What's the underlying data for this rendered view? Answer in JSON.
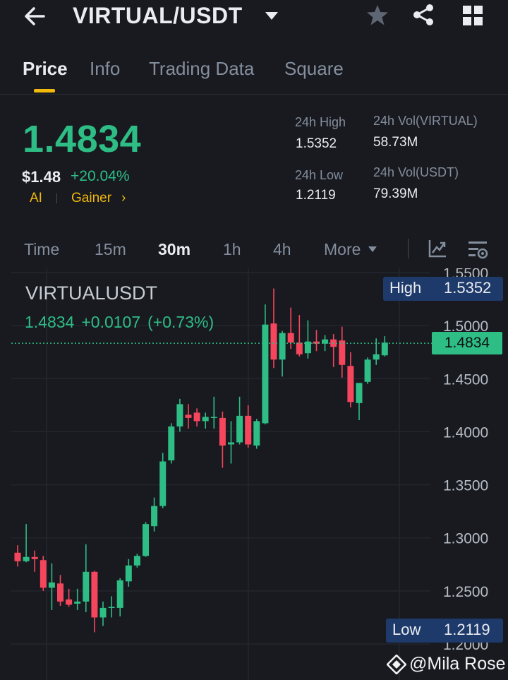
{
  "header": {
    "pair": "VIRTUAL/USDT",
    "icons": [
      "back-arrow-icon",
      "dropdown-caret-icon",
      "star-icon",
      "share-icon",
      "grid-menu-icon"
    ]
  },
  "tabs": [
    {
      "label": "Price",
      "active": true
    },
    {
      "label": "Info"
    },
    {
      "label": "Trading Data"
    },
    {
      "label": "Square"
    }
  ],
  "price": {
    "last": "1.4834",
    "usd": "$1.48",
    "change_pct": "+20.04%",
    "tag_ai": "AI",
    "tag_gainer": "Gainer",
    "tag_arrow": "›"
  },
  "stats": {
    "high_label": "24h High",
    "high_value": "1.5352",
    "low_label": "24h Low",
    "low_value": "1.2119",
    "vol_base_label": "24h Vol(VIRTUAL)",
    "vol_base_value": "58.73M",
    "vol_quote_label": "24h Vol(USDT)",
    "vol_quote_value": "79.39M"
  },
  "intervals": {
    "items": [
      "Time",
      "15m",
      "30m",
      "1h",
      "4h",
      "More"
    ],
    "active": "30m"
  },
  "chart": {
    "symbol": "VIRTUALUSDT",
    "last": "1.4834",
    "change": "+0.0107",
    "change_pct": "(+0.73%)",
    "high_label": "High",
    "high_value": "1.5352",
    "low_label": "Low",
    "low_value": "1.2119",
    "last_tag": "1.4834",
    "colors": {
      "up": "#2ebd85",
      "down": "#f6465d",
      "label_box": "#1d3a6b",
      "background": "#181a20"
    }
  },
  "chart_data": {
    "type": "candlestick",
    "y_ticks": [
      "1.5500",
      "1.5000",
      "1.4500",
      "1.4000",
      "1.3500",
      "1.3000",
      "1.2500",
      "1.2000"
    ],
    "ylim": [
      1.2,
      1.55
    ],
    "current_price": 1.4834,
    "interval": "30m",
    "candles": [
      {
        "o": 1.286,
        "h": 1.293,
        "l": 1.273,
        "c": 1.278
      },
      {
        "o": 1.278,
        "h": 1.313,
        "l": 1.277,
        "c": 1.282
      },
      {
        "o": 1.282,
        "h": 1.288,
        "l": 1.268,
        "c": 1.28
      },
      {
        "o": 1.279,
        "h": 1.283,
        "l": 1.25,
        "c": 1.253
      },
      {
        "o": 1.253,
        "h": 1.276,
        "l": 1.232,
        "c": 1.258
      },
      {
        "o": 1.257,
        "h": 1.265,
        "l": 1.236,
        "c": 1.24
      },
      {
        "o": 1.242,
        "h": 1.252,
        "l": 1.235,
        "c": 1.237
      },
      {
        "o": 1.238,
        "h": 1.252,
        "l": 1.232,
        "c": 1.24
      },
      {
        "o": 1.24,
        "h": 1.294,
        "l": 1.23,
        "c": 1.268
      },
      {
        "o": 1.268,
        "h": 1.269,
        "l": 1.211,
        "c": 1.225
      },
      {
        "o": 1.225,
        "h": 1.24,
        "l": 1.217,
        "c": 1.234
      },
      {
        "o": 1.234,
        "h": 1.245,
        "l": 1.225,
        "c": 1.235
      },
      {
        "o": 1.234,
        "h": 1.262,
        "l": 1.226,
        "c": 1.26
      },
      {
        "o": 1.259,
        "h": 1.28,
        "l": 1.254,
        "c": 1.274
      },
      {
        "o": 1.274,
        "h": 1.285,
        "l": 1.272,
        "c": 1.283
      },
      {
        "o": 1.283,
        "h": 1.315,
        "l": 1.282,
        "c": 1.313
      },
      {
        "o": 1.311,
        "h": 1.338,
        "l": 1.306,
        "c": 1.33
      },
      {
        "o": 1.33,
        "h": 1.38,
        "l": 1.328,
        "c": 1.372
      },
      {
        "o": 1.373,
        "h": 1.408,
        "l": 1.37,
        "c": 1.405
      },
      {
        "o": 1.405,
        "h": 1.431,
        "l": 1.4,
        "c": 1.426
      },
      {
        "o": 1.416,
        "h": 1.426,
        "l": 1.403,
        "c": 1.413
      },
      {
        "o": 1.418,
        "h": 1.422,
        "l": 1.405,
        "c": 1.41
      },
      {
        "o": 1.41,
        "h": 1.418,
        "l": 1.403,
        "c": 1.414
      },
      {
        "o": 1.414,
        "h": 1.433,
        "l": 1.403,
        "c": 1.414
      },
      {
        "o": 1.413,
        "h": 1.419,
        "l": 1.366,
        "c": 1.387
      },
      {
        "o": 1.388,
        "h": 1.41,
        "l": 1.37,
        "c": 1.39
      },
      {
        "o": 1.39,
        "h": 1.433,
        "l": 1.388,
        "c": 1.415
      },
      {
        "o": 1.415,
        "h": 1.425,
        "l": 1.385,
        "c": 1.388
      },
      {
        "o": 1.387,
        "h": 1.412,
        "l": 1.384,
        "c": 1.41
      },
      {
        "o": 1.408,
        "h": 1.52,
        "l": 1.407,
        "c": 1.501
      },
      {
        "o": 1.502,
        "h": 1.535,
        "l": 1.46,
        "c": 1.468
      },
      {
        "o": 1.468,
        "h": 1.495,
        "l": 1.452,
        "c": 1.493
      },
      {
        "o": 1.493,
        "h": 1.517,
        "l": 1.478,
        "c": 1.484
      },
      {
        "o": 1.484,
        "h": 1.51,
        "l": 1.471,
        "c": 1.473
      },
      {
        "o": 1.474,
        "h": 1.505,
        "l": 1.469,
        "c": 1.485
      },
      {
        "o": 1.485,
        "h": 1.496,
        "l": 1.476,
        "c": 1.483
      },
      {
        "o": 1.483,
        "h": 1.491,
        "l": 1.476,
        "c": 1.487
      },
      {
        "o": 1.487,
        "h": 1.492,
        "l": 1.461,
        "c": 1.48
      },
      {
        "o": 1.486,
        "h": 1.499,
        "l": 1.451,
        "c": 1.463
      },
      {
        "o": 1.462,
        "h": 1.475,
        "l": 1.423,
        "c": 1.428
      },
      {
        "o": 1.427,
        "h": 1.444,
        "l": 1.411,
        "c": 1.446
      },
      {
        "o": 1.447,
        "h": 1.47,
        "l": 1.445,
        "c": 1.468
      },
      {
        "o": 1.468,
        "h": 1.488,
        "l": 1.463,
        "c": 1.473
      },
      {
        "o": 1.472,
        "h": 1.49,
        "l": 1.471,
        "c": 1.484
      }
    ]
  },
  "watermark": {
    "text": "@Mila Rose"
  }
}
